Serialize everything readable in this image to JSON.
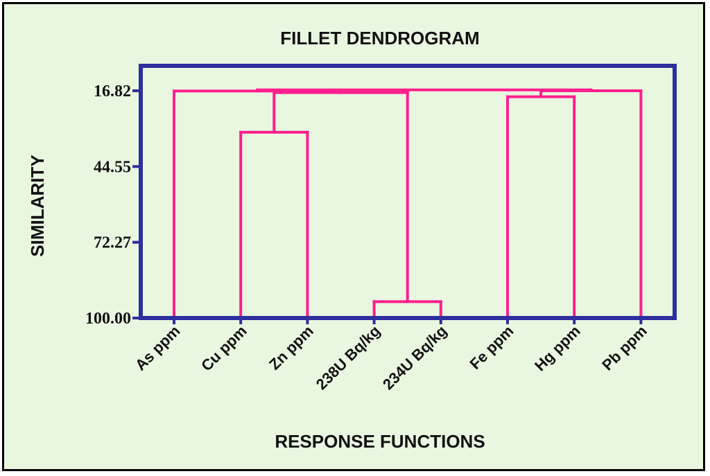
{
  "colors": {
    "background": "#e9f7e1",
    "frame": "#000000",
    "axes": "#2e2e9e",
    "dendrogram": "#ff1f8e",
    "text": "#111111"
  },
  "chart_data": {
    "type": "dendrogram",
    "title": "FILLET  DENDROGRAM",
    "xlabel": "RESPONSE  FUNCTIONS",
    "ylabel": "SIMILARITY",
    "y_ticks": [
      "16.82",
      "44.55",
      "72.27",
      "100.00"
    ],
    "y_tick_values": [
      16.82,
      44.55,
      72.27,
      100.0
    ],
    "ylim": [
      100.0,
      7.0
    ],
    "leaves": [
      "As ppm",
      "Cu ppm",
      "Zn ppm",
      "238U Bq/kg",
      "234U Bq/kg",
      "Fe ppm",
      "Hg ppm",
      "Pb ppm"
    ],
    "merges": [
      {
        "a": {
          "leaf": 3
        },
        "b": {
          "leaf": 4
        },
        "similarity": 94.0
      },
      {
        "a": {
          "leaf": 1
        },
        "b": {
          "leaf": 2
        },
        "similarity": 32.0
      },
      {
        "a": {
          "leaf": 5
        },
        "b": {
          "leaf": 6
        },
        "similarity": 19.0
      },
      {
        "a": {
          "node": 1
        },
        "b": {
          "node": 0
        },
        "similarity": 17.5
      },
      {
        "a": {
          "leaf": 0
        },
        "b": {
          "node": 3
        },
        "similarity": 16.9
      },
      {
        "a": {
          "node": 2
        },
        "b": {
          "leaf": 7
        },
        "similarity": 16.82
      },
      {
        "a": {
          "node": 4
        },
        "b": {
          "node": 5
        },
        "similarity": 16.5
      }
    ],
    "grid": false,
    "legend": "none"
  }
}
